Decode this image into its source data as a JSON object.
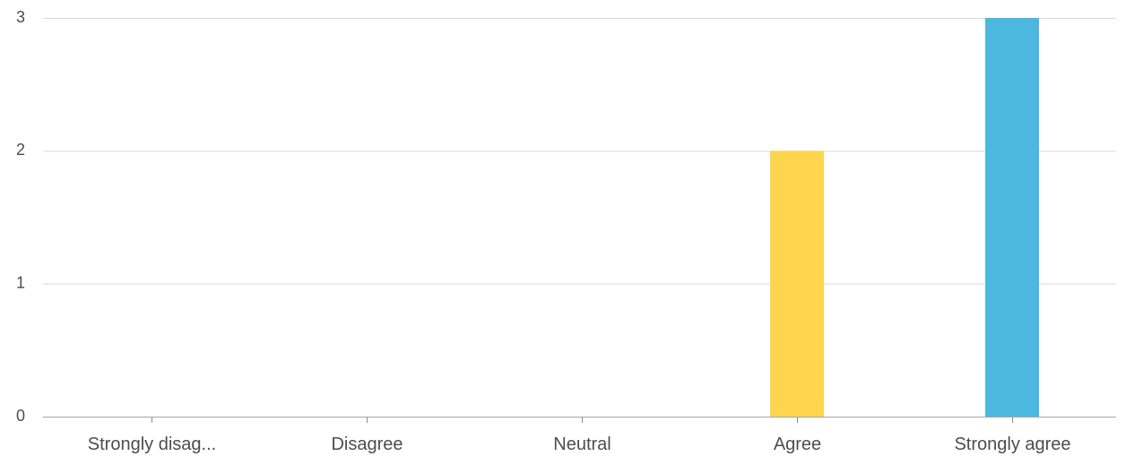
{
  "chart_data": {
    "type": "bar",
    "categories": [
      "Strongly disag...",
      "Disagree",
      "Neutral",
      "Agree",
      "Strongly agree"
    ],
    "values": [
      0,
      0,
      0,
      2,
      3
    ],
    "colors": [
      "#4cb8e0",
      "#4cb8e0",
      "#4cb8e0",
      "#ffd54d",
      "#4cb8e0"
    ],
    "y_ticks": [
      0,
      1,
      2,
      3
    ],
    "ylim": [
      0,
      3
    ],
    "grid": true,
    "legend": "none"
  }
}
